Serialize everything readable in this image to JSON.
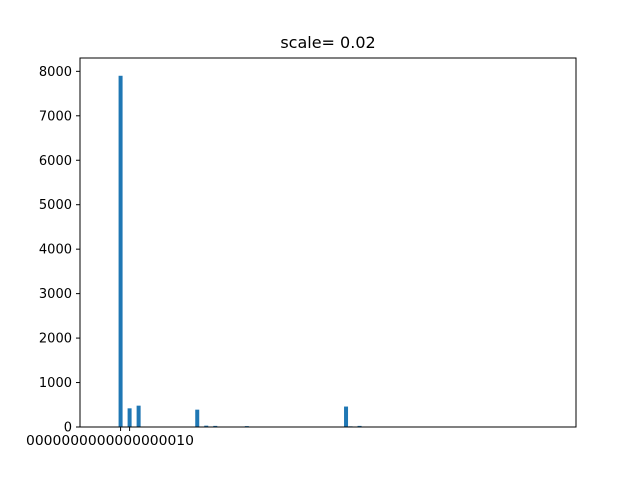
{
  "chart_data": {
    "type": "bar",
    "title": "scale= 0.02",
    "xlabel": "",
    "ylabel": "",
    "bar_color": "#1f77b4",
    "xlim": [
      -0.09,
      1.01
    ],
    "ylim": [
      0,
      8300
    ],
    "yticks": [
      0,
      1000,
      2000,
      3000,
      4000,
      5000,
      6000,
      7000,
      8000
    ],
    "x_tick_labels_text": "0000000000000000010",
    "grid": false,
    "legend": "none",
    "bars": [
      {
        "x": 0.0,
        "value": 7900
      },
      {
        "x": 0.02,
        "value": 420
      },
      {
        "x": 0.04,
        "value": 480
      },
      {
        "x": 0.17,
        "value": 390
      },
      {
        "x": 0.19,
        "value": 30
      },
      {
        "x": 0.21,
        "value": 25
      },
      {
        "x": 0.28,
        "value": 20
      },
      {
        "x": 0.5,
        "value": 460
      },
      {
        "x": 0.51,
        "value": 15
      },
      {
        "x": 0.53,
        "value": 25
      },
      {
        "x": 0.6,
        "value": 10
      }
    ]
  }
}
